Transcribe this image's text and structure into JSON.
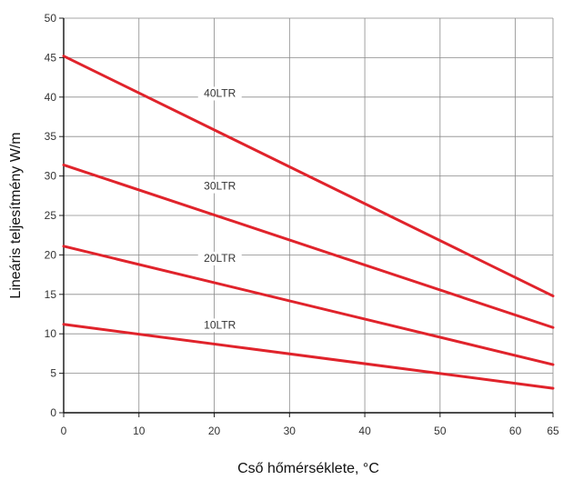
{
  "chart_data": {
    "type": "line",
    "xlabel": "Cső hőmérséklete, °C",
    "ylabel": "Lineáris teljesítmény W/m",
    "xlim": [
      0,
      65
    ],
    "ylim": [
      0,
      50
    ],
    "x_ticks": [
      0,
      10,
      20,
      30,
      40,
      50,
      60,
      65
    ],
    "y_ticks": [
      0,
      5,
      10,
      15,
      20,
      25,
      30,
      35,
      40,
      45,
      50
    ],
    "grid": true,
    "line_color": "#e0232b",
    "grid_color": "#8a8a8a",
    "x": [
      0,
      65
    ],
    "series": [
      {
        "name": "40LTR",
        "values": [
          45.2,
          14.8
        ],
        "label_x": 13.5
      },
      {
        "name": "30LTR",
        "values": [
          31.4,
          10.8
        ],
        "label_x": 13.5
      },
      {
        "name": "20LTR",
        "values": [
          21.1,
          6.1
        ],
        "label_x": 13.5
      },
      {
        "name": "10LTR",
        "values": [
          11.2,
          3.1
        ],
        "label_x": 13.5
      }
    ]
  }
}
